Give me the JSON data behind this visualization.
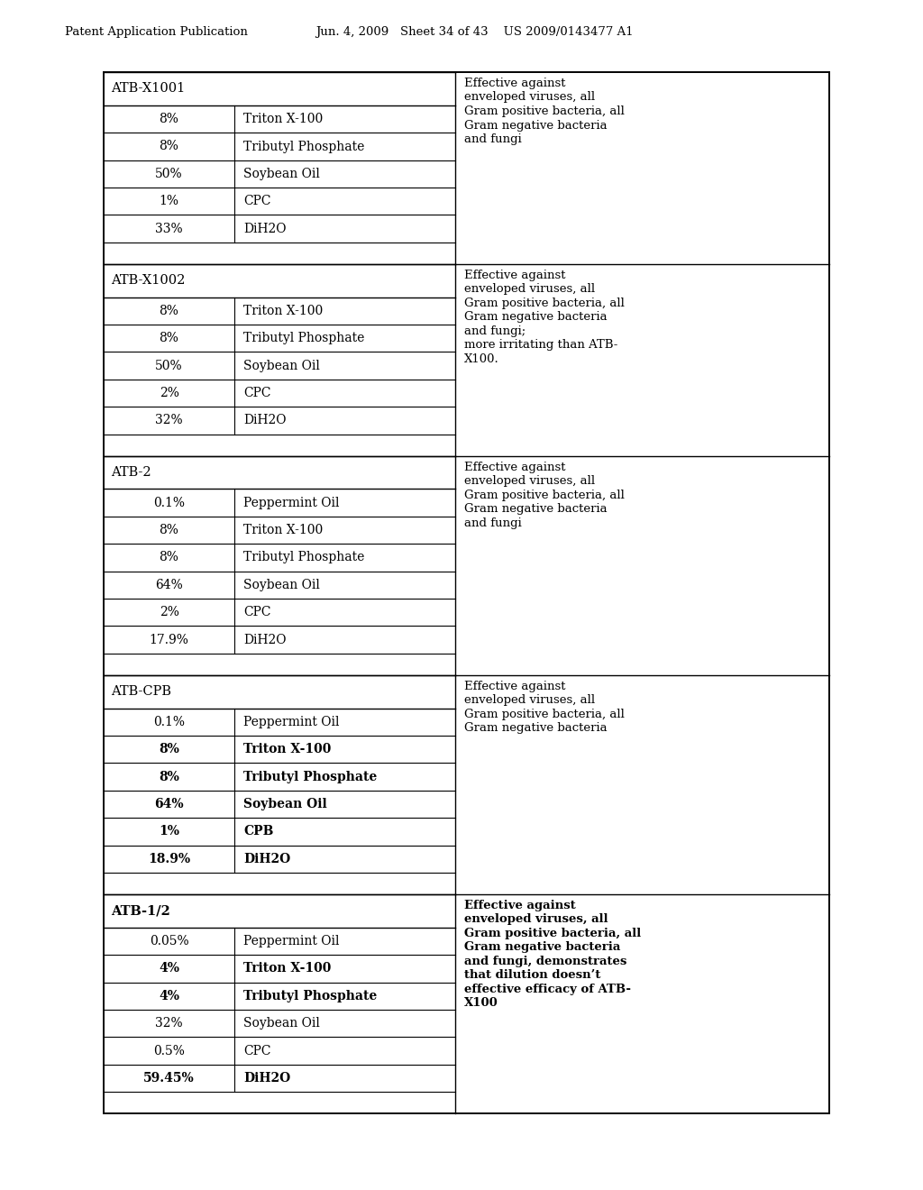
{
  "header_left": "Patent Application Publication",
  "header_right": "Jun. 4, 2009   Sheet 34 of 43    US 2009/0143477 A1",
  "background_color": "#c8c8c8",
  "sections": [
    {
      "name": "ATB-X1001",
      "rows": [
        {
          "pct": "8%",
          "ingredient": "Triton X-100",
          "bold": false
        },
        {
          "pct": "8%",
          "ingredient": "Tributyl Phosphate",
          "bold": false
        },
        {
          "pct": "50%",
          "ingredient": "Soybean Oil",
          "bold": false
        },
        {
          "pct": "1%",
          "ingredient": "CPC",
          "bold": false
        },
        {
          "pct": "33%",
          "ingredient": "DiH2O",
          "bold": false
        }
      ],
      "effect": "Effective against\nenveloped viruses, all\nGram positive bacteria, all\nGram negative bacteria\nand fungi",
      "effect_bold": false,
      "name_bold": false
    },
    {
      "name": "ATB-X1002",
      "rows": [
        {
          "pct": "8%",
          "ingredient": "Triton X-100",
          "bold": false
        },
        {
          "pct": "8%",
          "ingredient": "Tributyl Phosphate",
          "bold": false
        },
        {
          "pct": "50%",
          "ingredient": "Soybean Oil",
          "bold": false
        },
        {
          "pct": "2%",
          "ingredient": "CPC",
          "bold": false
        },
        {
          "pct": "32%",
          "ingredient": "DiH2O",
          "bold": false
        }
      ],
      "effect": "Effective against\nenveloped viruses, all\nGram positive bacteria, all\nGram negative bacteria\nand fungi;\nmore irritating than ATB-\nX100.",
      "effect_bold": false,
      "name_bold": false
    },
    {
      "name": "ATB-2",
      "rows": [
        {
          "pct": "0.1%",
          "ingredient": "Peppermint Oil",
          "bold": false
        },
        {
          "pct": "8%",
          "ingredient": "Triton X-100",
          "bold": false
        },
        {
          "pct": "8%",
          "ingredient": "Tributyl Phosphate",
          "bold": false
        },
        {
          "pct": "64%",
          "ingredient": "Soybean Oil",
          "bold": false
        },
        {
          "pct": "2%",
          "ingredient": "CPC",
          "bold": false
        },
        {
          "pct": "17.9%",
          "ingredient": "DiH2O",
          "bold": false
        }
      ],
      "effect": "Effective against\nenveloped viruses, all\nGram positive bacteria, all\nGram negative bacteria\nand fungi",
      "effect_bold": false,
      "name_bold": false
    },
    {
      "name": "ATB-CPB",
      "rows": [
        {
          "pct": "0.1%",
          "ingredient": "Peppermint Oil",
          "bold": false
        },
        {
          "pct": "8%",
          "ingredient": "Triton X-100",
          "bold": true
        },
        {
          "pct": "8%",
          "ingredient": "Tributyl Phosphate",
          "bold": true
        },
        {
          "pct": "64%",
          "ingredient": "Soybean Oil",
          "bold": true
        },
        {
          "pct": "1%",
          "ingredient": "CPB",
          "bold": true
        },
        {
          "pct": "18.9%",
          "ingredient": "DiH2O",
          "bold": true
        }
      ],
      "effect": "Effective against\nenveloped viruses, all\nGram positive bacteria, all\nGram negative bacteria",
      "effect_bold": false,
      "name_bold": false
    },
    {
      "name": "ATB-1/2",
      "rows": [
        {
          "pct": "0.05%",
          "ingredient": "Peppermint Oil",
          "bold": false
        },
        {
          "pct": "4%",
          "ingredient": "Triton X-100",
          "bold": true
        },
        {
          "pct": "4%",
          "ingredient": "Tributyl Phosphate",
          "bold": true
        },
        {
          "pct": "32%",
          "ingredient": "Soybean Oil",
          "bold": false
        },
        {
          "pct": "0.5%",
          "ingredient": "CPC",
          "bold": false
        },
        {
          "pct": "59.45%",
          "ingredient": "DiH2O",
          "bold": true
        }
      ],
      "effect": "Effective against\nenveloped viruses, all\nGram positive bacteria, all\nGram negative bacteria\nand fungi, demonstrates\nthat dilution doesn’t\neffective efficacy of ATB-\nX100",
      "effect_bold": true,
      "name_bold": true
    }
  ]
}
